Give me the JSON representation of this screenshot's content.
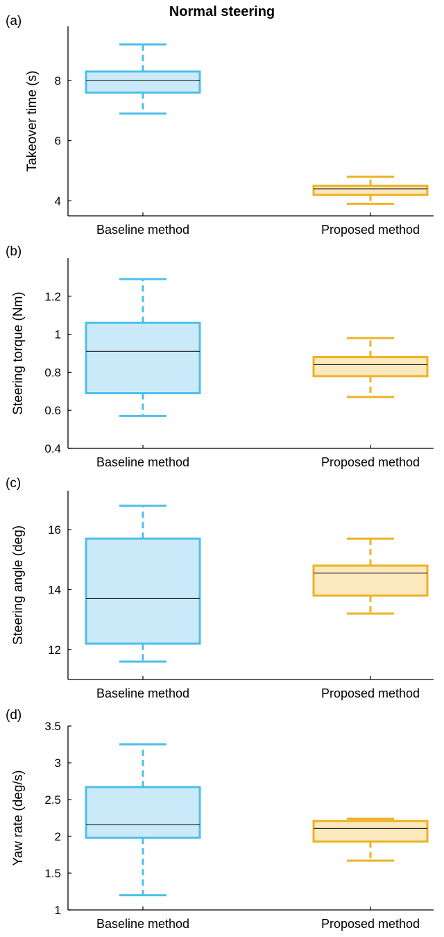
{
  "figure": {
    "title": "Normal steering"
  },
  "colors": {
    "baseline_stroke": "#4dbfea",
    "baseline_fill": "#cbeaf9",
    "proposed_stroke": "#edb224",
    "proposed_fill": "#fbe8be",
    "median": "#000000",
    "axis": "#000000"
  },
  "chart_data": [
    {
      "type": "box",
      "panel_label": "(a)",
      "title": "Normal steering",
      "ylabel": "Takeover time (s)",
      "xlabel": "",
      "categories": [
        "Baseline method",
        "Proposed method"
      ],
      "ylim": [
        3.5,
        9.8
      ],
      "yticks": [
        4,
        6,
        8
      ],
      "ytick_labels": [
        "4",
        "6",
        "8"
      ],
      "boxes": [
        {
          "name": "Baseline method",
          "whisker_low": 6.9,
          "q1": 7.6,
          "median": 8.0,
          "q3": 8.3,
          "whisker_high": 9.2
        },
        {
          "name": "Proposed method",
          "whisker_low": 3.9,
          "q1": 4.2,
          "median": 4.4,
          "q3": 4.5,
          "whisker_high": 4.8
        }
      ],
      "grid": false
    },
    {
      "type": "box",
      "panel_label": "(b)",
      "ylabel": "Steering torque (Nm)",
      "xlabel": "",
      "categories": [
        "Baseline method",
        "Proposed method"
      ],
      "ylim": [
        0.4,
        1.4
      ],
      "yticks": [
        0.4,
        0.6,
        0.8,
        1.0,
        1.2
      ],
      "ytick_labels": [
        "0.4",
        "0.6",
        "0.8",
        "1",
        "1.2"
      ],
      "boxes": [
        {
          "name": "Baseline method",
          "whisker_low": 0.57,
          "q1": 0.69,
          "median": 0.91,
          "q3": 1.06,
          "whisker_high": 1.29
        },
        {
          "name": "Proposed method",
          "whisker_low": 0.67,
          "q1": 0.78,
          "median": 0.84,
          "q3": 0.88,
          "whisker_high": 0.98
        }
      ],
      "grid": false
    },
    {
      "type": "box",
      "panel_label": "(c)",
      "ylabel": "Steering angle (deg)",
      "xlabel": "",
      "categories": [
        "Baseline method",
        "Proposed method"
      ],
      "ylim": [
        11.0,
        17.3
      ],
      "yticks": [
        12,
        14,
        16
      ],
      "ytick_labels": [
        "12",
        "14",
        "16"
      ],
      "boxes": [
        {
          "name": "Baseline method",
          "whisker_low": 11.6,
          "q1": 12.2,
          "median": 13.7,
          "q3": 15.7,
          "whisker_high": 16.8
        },
        {
          "name": "Proposed method",
          "whisker_low": 13.2,
          "q1": 13.8,
          "median": 14.55,
          "q3": 14.8,
          "whisker_high": 15.7
        }
      ],
      "grid": false
    },
    {
      "type": "box",
      "panel_label": "(d)",
      "ylabel": "Yaw rate (deg/s)",
      "xlabel": "",
      "categories": [
        "Baseline method",
        "Proposed method"
      ],
      "ylim": [
        1.0,
        3.5
      ],
      "yticks": [
        1.0,
        1.5,
        2.0,
        2.5,
        3.0,
        3.5
      ],
      "ytick_labels": [
        "1",
        "1.5",
        "2",
        "2.5",
        "3",
        "3.5"
      ],
      "boxes": [
        {
          "name": "Baseline method",
          "whisker_low": 1.2,
          "q1": 1.98,
          "median": 2.16,
          "q3": 2.67,
          "whisker_high": 3.25
        },
        {
          "name": "Proposed method",
          "whisker_low": 1.67,
          "q1": 1.93,
          "median": 2.11,
          "q3": 2.21,
          "whisker_high": 2.24
        }
      ],
      "grid": false
    }
  ]
}
